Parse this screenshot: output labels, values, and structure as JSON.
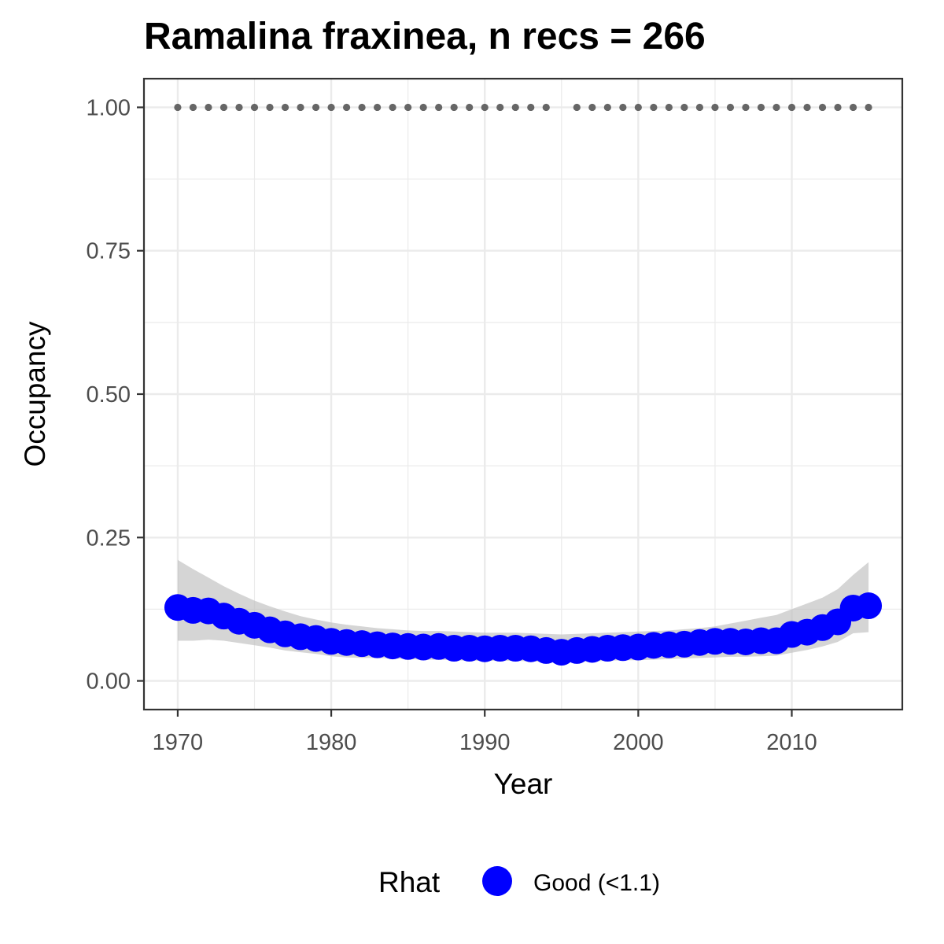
{
  "chart_data": {
    "type": "line",
    "title": "Ramalina fraxinea, n recs = 266",
    "xlabel": "Year",
    "ylabel": "Occupancy",
    "xlim": [
      1967.8,
      2017.2
    ],
    "ylim": [
      -0.05,
      1.05
    ],
    "x_ticks": [
      1970,
      1980,
      1990,
      2000,
      2010
    ],
    "x_tick_labels": [
      "1970",
      "1980",
      "1990",
      "2000",
      "2010"
    ],
    "y_ticks": [
      0,
      0.25,
      0.5,
      0.75,
      1.0
    ],
    "y_tick_labels": [
      "0.00",
      "0.25",
      "0.50",
      "0.75",
      "1.00"
    ],
    "grid": true,
    "legend_position": "bottom",
    "colors": {
      "points": "#0000ff",
      "ribbon": "#bfbfbf",
      "record_dots": "#666666",
      "grid": "#ebebeb",
      "panel_border": "#333333"
    },
    "x": [
      1970,
      1971,
      1972,
      1973,
      1974,
      1975,
      1976,
      1977,
      1978,
      1979,
      1980,
      1981,
      1982,
      1983,
      1984,
      1985,
      1986,
      1987,
      1988,
      1989,
      1990,
      1991,
      1992,
      1993,
      1994,
      1995,
      1996,
      1997,
      1998,
      1999,
      2000,
      2001,
      2002,
      2003,
      2004,
      2005,
      2006,
      2007,
      2008,
      2009,
      2010,
      2011,
      2012,
      2013,
      2014,
      2015
    ],
    "series": [
      {
        "name": "Good (<1.1)",
        "values": [
          0.128,
          0.123,
          0.122,
          0.113,
          0.104,
          0.097,
          0.089,
          0.082,
          0.077,
          0.074,
          0.069,
          0.067,
          0.065,
          0.063,
          0.061,
          0.06,
          0.059,
          0.06,
          0.057,
          0.057,
          0.056,
          0.057,
          0.057,
          0.056,
          0.053,
          0.05,
          0.053,
          0.055,
          0.057,
          0.058,
          0.059,
          0.062,
          0.063,
          0.064,
          0.067,
          0.069,
          0.069,
          0.068,
          0.07,
          0.07,
          0.081,
          0.085,
          0.093,
          0.103,
          0.127,
          0.131
        ],
        "lower": [
          0.07,
          0.07,
          0.072,
          0.07,
          0.066,
          0.062,
          0.058,
          0.053,
          0.05,
          0.047,
          0.043,
          0.041,
          0.04,
          0.04,
          0.039,
          0.038,
          0.037,
          0.037,
          0.036,
          0.035,
          0.035,
          0.035,
          0.035,
          0.034,
          0.033,
          0.032,
          0.033,
          0.034,
          0.035,
          0.036,
          0.036,
          0.037,
          0.038,
          0.039,
          0.04,
          0.041,
          0.042,
          0.042,
          0.043,
          0.044,
          0.049,
          0.054,
          0.06,
          0.068,
          0.083,
          0.085
        ],
        "upper": [
          0.211,
          0.195,
          0.18,
          0.165,
          0.152,
          0.14,
          0.13,
          0.121,
          0.113,
          0.107,
          0.102,
          0.098,
          0.095,
          0.092,
          0.09,
          0.088,
          0.087,
          0.087,
          0.086,
          0.085,
          0.084,
          0.084,
          0.084,
          0.083,
          0.082,
          0.081,
          0.082,
          0.083,
          0.084,
          0.085,
          0.086,
          0.087,
          0.088,
          0.09,
          0.092,
          0.095,
          0.1,
          0.105,
          0.11,
          0.115,
          0.125,
          0.135,
          0.145,
          0.16,
          0.185,
          0.207
        ]
      }
    ],
    "record_years": [
      1970,
      1971,
      1972,
      1973,
      1974,
      1975,
      1976,
      1977,
      1978,
      1979,
      1980,
      1981,
      1982,
      1983,
      1984,
      1985,
      1986,
      1987,
      1988,
      1989,
      1990,
      1991,
      1992,
      1993,
      1994,
      1996,
      1997,
      1998,
      1999,
      2000,
      2001,
      2002,
      2003,
      2004,
      2005,
      2006,
      2007,
      2008,
      2009,
      2010,
      2011,
      2012,
      2013,
      2014,
      2015
    ],
    "record_value": 1.0,
    "legend": {
      "title": "Rhat",
      "entries": [
        {
          "label": "Good (<1.1)",
          "color": "#0000ff"
        }
      ]
    }
  }
}
